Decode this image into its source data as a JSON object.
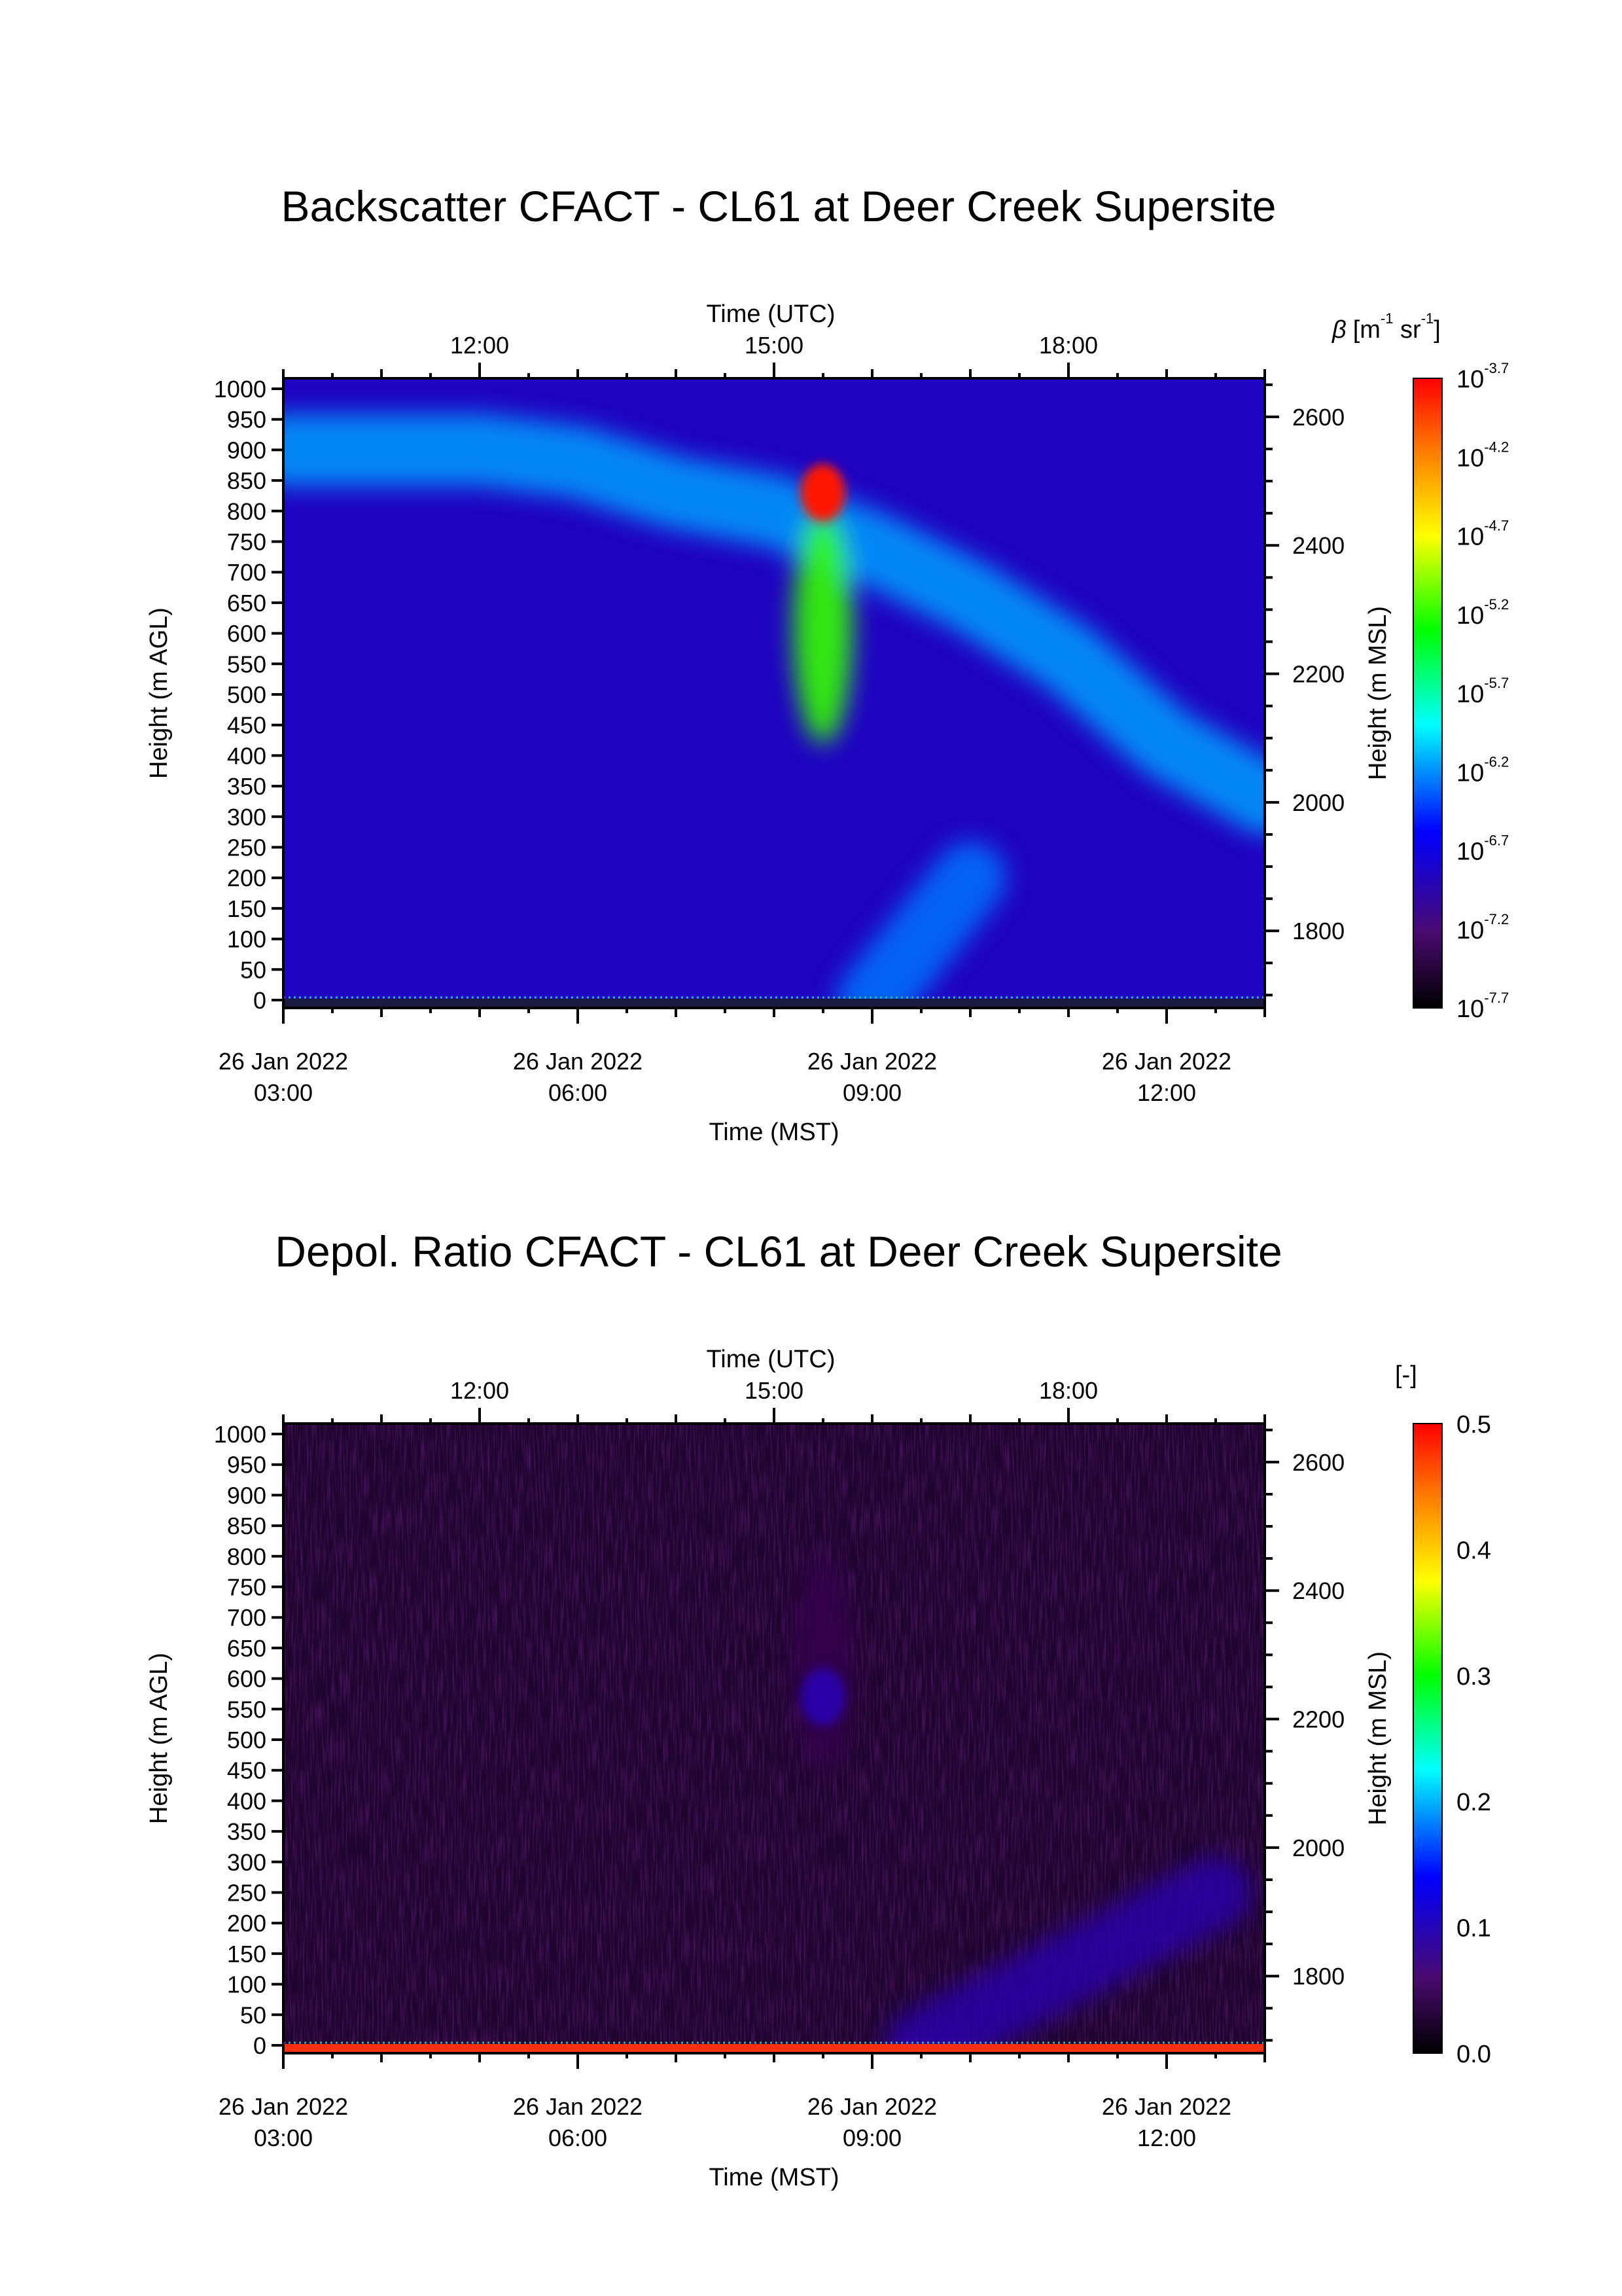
{
  "charts": [
    {
      "title": "Backscatter CFACT - CL61 at Deer Creek Supersite",
      "top_axis_label": "Time (UTC)",
      "top_ticks": [
        "12:00",
        "15:00",
        "18:00"
      ],
      "bottom_axis_label": "Time (MST)",
      "bottom_ticks": [
        {
          "date": "26 Jan 2022",
          "time": "03:00"
        },
        {
          "date": "26 Jan 2022",
          "time": "06:00"
        },
        {
          "date": "26 Jan 2022",
          "time": "09:00"
        },
        {
          "date": "26 Jan 2022",
          "time": "12:00"
        }
      ],
      "left_axis_label": "Height (m AGL)",
      "left_ticks": [
        "0",
        "50",
        "100",
        "150",
        "200",
        "250",
        "300",
        "350",
        "400",
        "450",
        "500",
        "550",
        "600",
        "650",
        "700",
        "750",
        "800",
        "850",
        "900",
        "950",
        "1000"
      ],
      "right_axis_label": "Height (m MSL)",
      "right_ticks": [
        "1800",
        "2000",
        "2200",
        "2400",
        "2600"
      ],
      "colorbar_label": {
        "symbol": "β",
        "text": "[m",
        "sup1": "-1",
        "mid": " sr",
        "sup2": "-1",
        "end": "]"
      },
      "colorbar_ticks": [
        {
          "base": "10",
          "exp": "-3.7"
        },
        {
          "base": "10",
          "exp": "-4.2"
        },
        {
          "base": "10",
          "exp": "-4.7"
        },
        {
          "base": "10",
          "exp": "-5.2"
        },
        {
          "base": "10",
          "exp": "-5.7"
        },
        {
          "base": "10",
          "exp": "-6.2"
        },
        {
          "base": "10",
          "exp": "-6.7"
        },
        {
          "base": "10",
          "exp": "-7.2"
        },
        {
          "base": "10",
          "exp": "-7.7"
        }
      ]
    },
    {
      "title": "Depol. Ratio CFACT - CL61 at Deer Creek Supersite",
      "top_axis_label": "Time (UTC)",
      "top_ticks": [
        "12:00",
        "15:00",
        "18:00"
      ],
      "bottom_axis_label": "Time (MST)",
      "bottom_ticks": [
        {
          "date": "26 Jan 2022",
          "time": "03:00"
        },
        {
          "date": "26 Jan 2022",
          "time": "06:00"
        },
        {
          "date": "26 Jan 2022",
          "time": "09:00"
        },
        {
          "date": "26 Jan 2022",
          "time": "12:00"
        }
      ],
      "left_axis_label": "Height (m AGL)",
      "left_ticks": [
        "0",
        "50",
        "100",
        "150",
        "200",
        "250",
        "300",
        "350",
        "400",
        "450",
        "500",
        "550",
        "600",
        "650",
        "700",
        "750",
        "800",
        "850",
        "900",
        "950",
        "1000"
      ],
      "right_axis_label": "Height (m MSL)",
      "right_ticks": [
        "1800",
        "2000",
        "2200",
        "2400",
        "2600"
      ],
      "colorbar_label": {
        "text": "[-]"
      },
      "colorbar_ticks": [
        {
          "base": "0.5"
        },
        {
          "base": "0.4"
        },
        {
          "base": "0.3"
        },
        {
          "base": "0.2"
        },
        {
          "base": "0.1"
        },
        {
          "base": "0.0"
        }
      ]
    }
  ],
  "chart_data": [
    {
      "type": "heatmap",
      "title": "Backscatter CFACT - CL61 at Deer Creek Supersite",
      "quantity": "β [m-1 sr-1]",
      "xlabel": "Time (MST)",
      "x2label": "Time (UTC)",
      "ylabel": "Height (m AGL)",
      "y2label": "Height (m MSL)",
      "x_range_mst": [
        "26 Jan 2022 03:00",
        "26 Jan 2022 13:00"
      ],
      "y_range_agl_m": [
        0,
        1000
      ],
      "y2_range_msl_m": [
        1680,
        2660
      ],
      "color_scale": "log10",
      "color_range": [
        "1e-7.7",
        "1e-3.7"
      ],
      "colormap": [
        "#000000",
        "#4a0a70",
        "#0000ff",
        "#00ffff",
        "#00ff00",
        "#ffff00",
        "#ff8000",
        "#ff0000"
      ],
      "background_log10": -6.8,
      "features": [
        {
          "name": "elevated aerosol/cloud layer",
          "times_mst": [
            "03:00",
            "05:00",
            "06:00",
            "07:00",
            "08:00",
            "09:00",
            "10:00",
            "11:00",
            "12:00",
            "13:00"
          ],
          "height_agl_m": [
            900,
            900,
            880,
            830,
            800,
            740,
            660,
            560,
            420,
            330
          ],
          "log10_value": -6.2
        },
        {
          "name": "cloud core",
          "time_mst": "08:30",
          "height_agl_m": 830,
          "log10_value": -3.8
        },
        {
          "name": "fall streak",
          "time_mst": "08:30",
          "height_agl_m": [
            420,
            800
          ],
          "log10_value": -5.3
        },
        {
          "name": "near-surface plumes",
          "times_mst": [
            "09:00",
            "10:00"
          ],
          "height_agl_m": [
            0,
            200
          ],
          "log10_value": -6.3
        }
      ]
    },
    {
      "type": "heatmap",
      "title": "Depol. Ratio CFACT - CL61 at Deer Creek Supersite",
      "quantity": "[-]",
      "xlabel": "Time (MST)",
      "x2label": "Time (UTC)",
      "ylabel": "Height (m AGL)",
      "y2label": "Height (m MSL)",
      "x_range_mst": [
        "26 Jan 2022 03:00",
        "26 Jan 2022 13:00"
      ],
      "y_range_agl_m": [
        0,
        1000
      ],
      "y2_range_msl_m": [
        1680,
        2660
      ],
      "color_range": [
        0.0,
        0.5
      ],
      "colormap": [
        "#000000",
        "#4a0a70",
        "#0000ff",
        "#00ffff",
        "#00ff00",
        "#ffff00",
        "#ff8000",
        "#ff0000"
      ],
      "background_value": 0.03,
      "features": [
        {
          "name": "elevated layer depol",
          "time_mst": "08:30",
          "height_agl_m": [
            450,
            800
          ],
          "value": 0.05
        },
        {
          "name": "cloud core depol",
          "time_mst": "08:30",
          "height_agl_m": 570,
          "value": 0.1
        },
        {
          "name": "near-surface depol",
          "times_mst": [
            "09:30",
            "12:30"
          ],
          "height_agl_m": [
            0,
            250
          ],
          "value": 0.1
        }
      ]
    }
  ]
}
